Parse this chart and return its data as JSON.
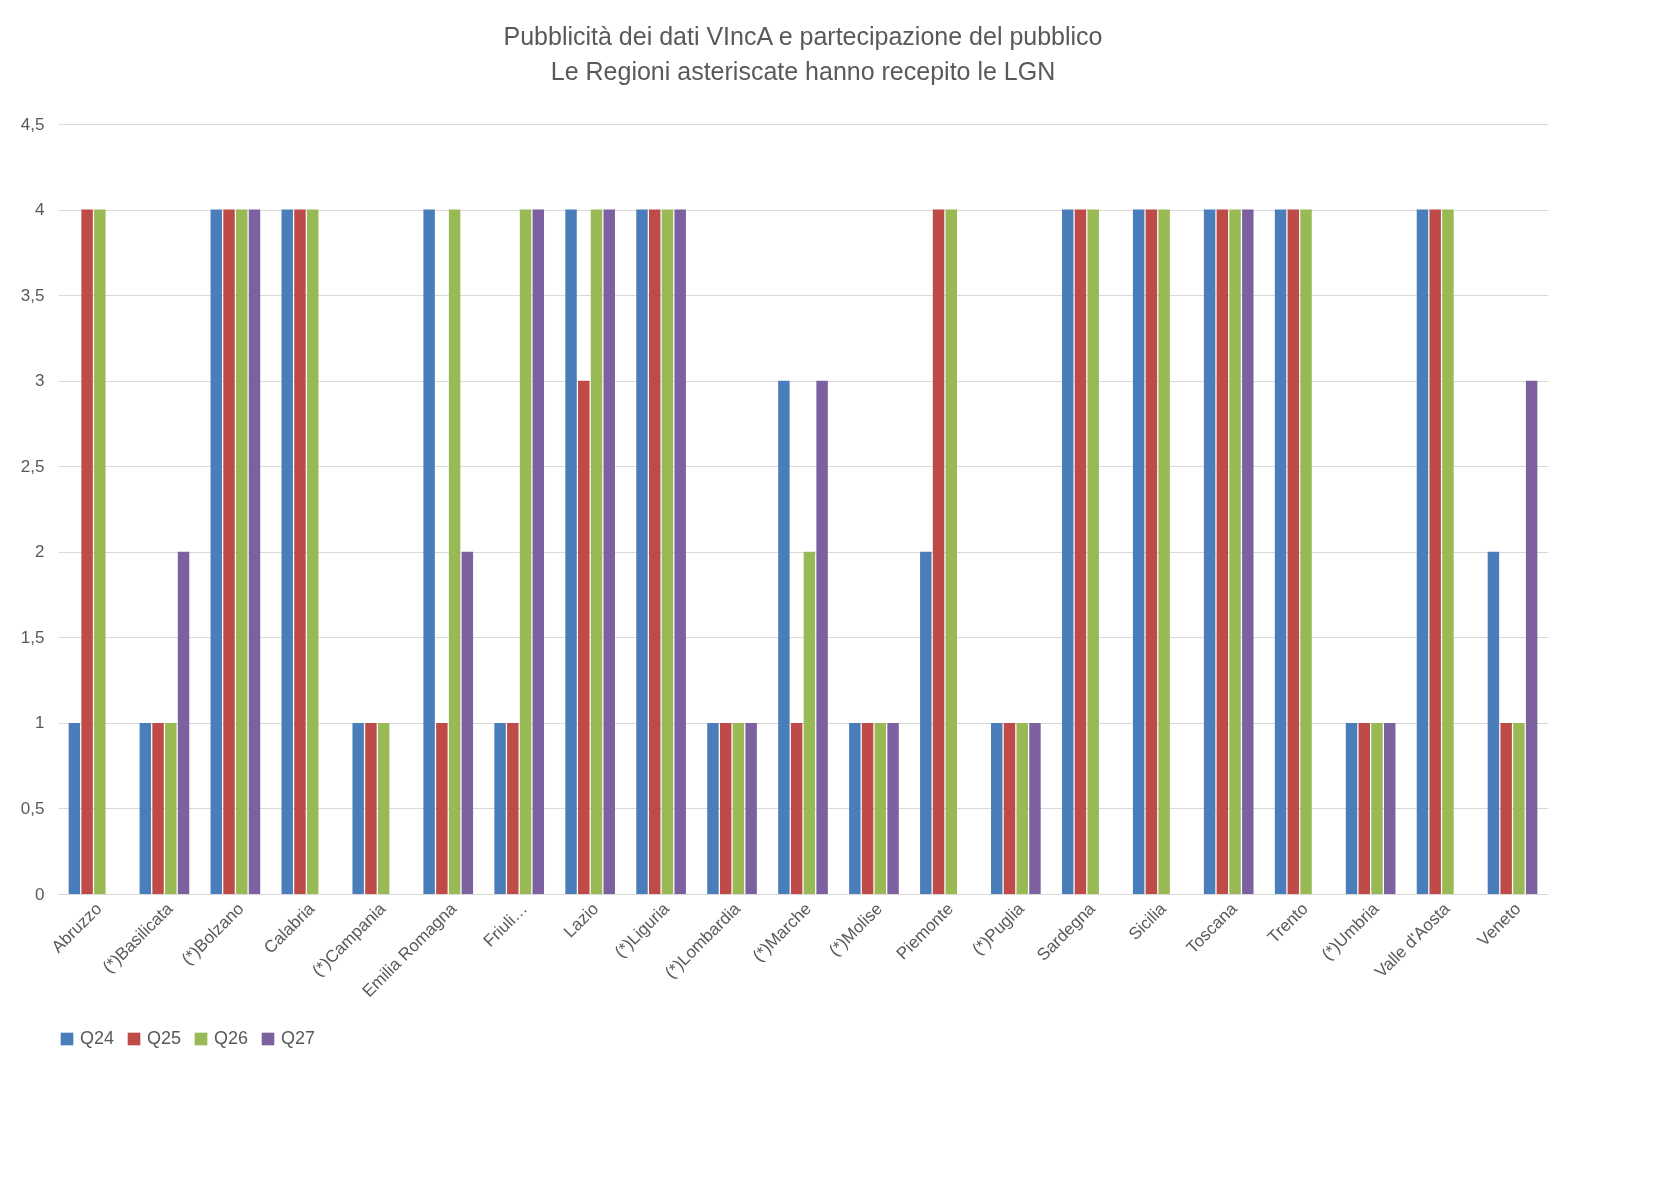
{
  "chart_data": {
    "type": "bar",
    "title": "Pubblicità dei dati VIncA e partecipazione del pubblico",
    "subtitle": "Le Regioni asteriscate hanno recepito le LGN",
    "categories": [
      "Abruzzo",
      "(*)Basilicata",
      "(*)Bolzano",
      "Calabria",
      "(*)Campania",
      "Emilia Romagna",
      "Friuli…",
      "Lazio",
      "(*)Liguria",
      "(*)Lombardia",
      "(*)Marche",
      "(*)Molise",
      "Piemonte",
      "(*)Puglia",
      "Sardegna",
      "Sicilia",
      "Toscana",
      "Trento",
      "(*)Umbria",
      "Valle d'Aosta",
      "Veneto"
    ],
    "series": [
      {
        "name": "Q24",
        "color": "#4a7ebb",
        "values": [
          1,
          1,
          4,
          4,
          1,
          4,
          1,
          4,
          4,
          1,
          3,
          1,
          2,
          1,
          4,
          4,
          4,
          4,
          1,
          4,
          2
        ]
      },
      {
        "name": "Q25",
        "color": "#be4b48",
        "values": [
          4,
          1,
          4,
          4,
          1,
          1,
          1,
          3,
          4,
          1,
          1,
          1,
          4,
          1,
          4,
          4,
          4,
          4,
          1,
          4,
          1
        ]
      },
      {
        "name": "Q26",
        "color": "#98b954",
        "values": [
          4,
          1,
          4,
          4,
          1,
          4,
          4,
          4,
          4,
          1,
          2,
          1,
          4,
          1,
          4,
          4,
          4,
          4,
          1,
          4,
          1
        ]
      },
      {
        "name": "Q27",
        "color": "#7d60a0",
        "values": [
          null,
          2,
          4,
          null,
          null,
          2,
          4,
          4,
          4,
          1,
          3,
          1,
          null,
          1,
          null,
          null,
          4,
          null,
          1,
          null,
          3
        ]
      }
    ],
    "ylim": [
      0,
      4.5
    ],
    "yticks": [
      0,
      {
        "value": 0.5,
        "label": "0,5"
      },
      1,
      {
        "value": 1.5,
        "label": "1,5"
      },
      2,
      {
        "value": 2.5,
        "label": "2,5"
      },
      3,
      {
        "value": 3.5,
        "label": "3,5"
      },
      4,
      {
        "value": 4.5,
        "label": "4,5"
      }
    ],
    "grid": "y",
    "legend": "bottom"
  }
}
